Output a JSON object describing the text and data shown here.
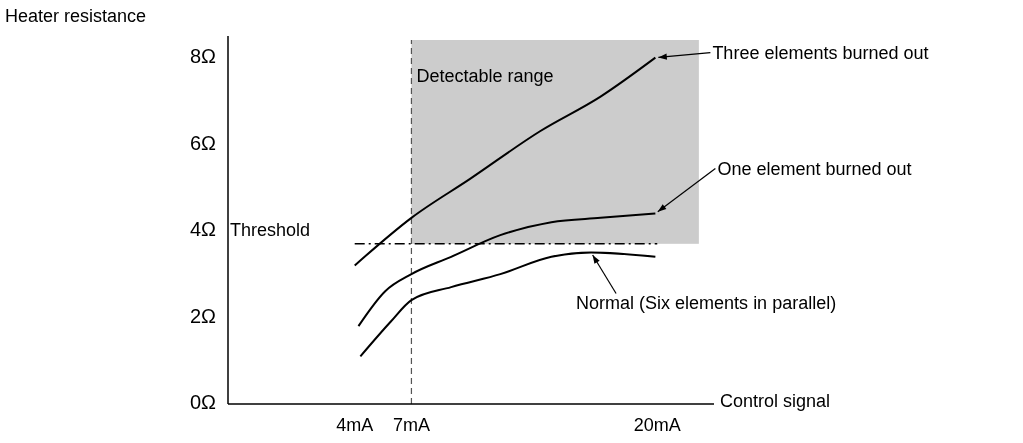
{
  "chart_data": {
    "type": "line",
    "xlabel": "Control signal",
    "ylabel": "Heater resistance",
    "xlim": [
      -2.7,
      23
    ],
    "xticks": [
      {
        "value": 4,
        "label": "4mA"
      },
      {
        "value": 7,
        "label": "7mA"
      },
      {
        "value": 20,
        "label": "20mA"
      }
    ],
    "ylim": [
      0,
      8.5
    ],
    "yticks": [
      {
        "value": 0,
        "label": "0Ω"
      },
      {
        "value": 2,
        "label": "2Ω"
      },
      {
        "value": 4,
        "label": "4Ω"
      },
      {
        "value": 6,
        "label": "6Ω"
      },
      {
        "value": 8,
        "label": "8Ω"
      }
    ],
    "series": [
      {
        "name": "Three elements burned out",
        "color": "#000000",
        "x": [
          4.0,
          7,
          10.1,
          13.8,
          17.0,
          19.9
        ],
        "values": [
          3.2,
          4.3,
          5.2,
          6.3,
          7.1,
          8.0
        ]
      },
      {
        "name": "One element burned out",
        "color": "#000000",
        "x": [
          4.2,
          5.6,
          7,
          9.1,
          11.7,
          14.4,
          17.0,
          19.9
        ],
        "values": [
          1.8,
          2.6,
          3.0,
          3.4,
          3.9,
          4.2,
          4.3,
          4.4
        ]
      },
      {
        "name": "Normal (Six elements in parallel)",
        "color": "#000000",
        "x": [
          4.3,
          5.9,
          7,
          9.1,
          11.7,
          14.4,
          16.5,
          19.9
        ],
        "values": [
          1.1,
          1.9,
          2.4,
          2.7,
          3.0,
          3.4,
          3.5,
          3.4
        ]
      }
    ],
    "ref_lines": [
      {
        "axis": "y",
        "value": 3.7,
        "label": "Threshold",
        "color": "#000000"
      },
      {
        "axis": "x",
        "value": 7,
        "label": null,
        "color": "#555555",
        "line_style": "dashed"
      }
    ],
    "bands": [
      {
        "axis": "x",
        "from": 7,
        "to": 22.2,
        "label": "Detectable range",
        "color": "#cccccc"
      }
    ],
    "grid": false,
    "marker": "none",
    "line_style": "solid"
  }
}
